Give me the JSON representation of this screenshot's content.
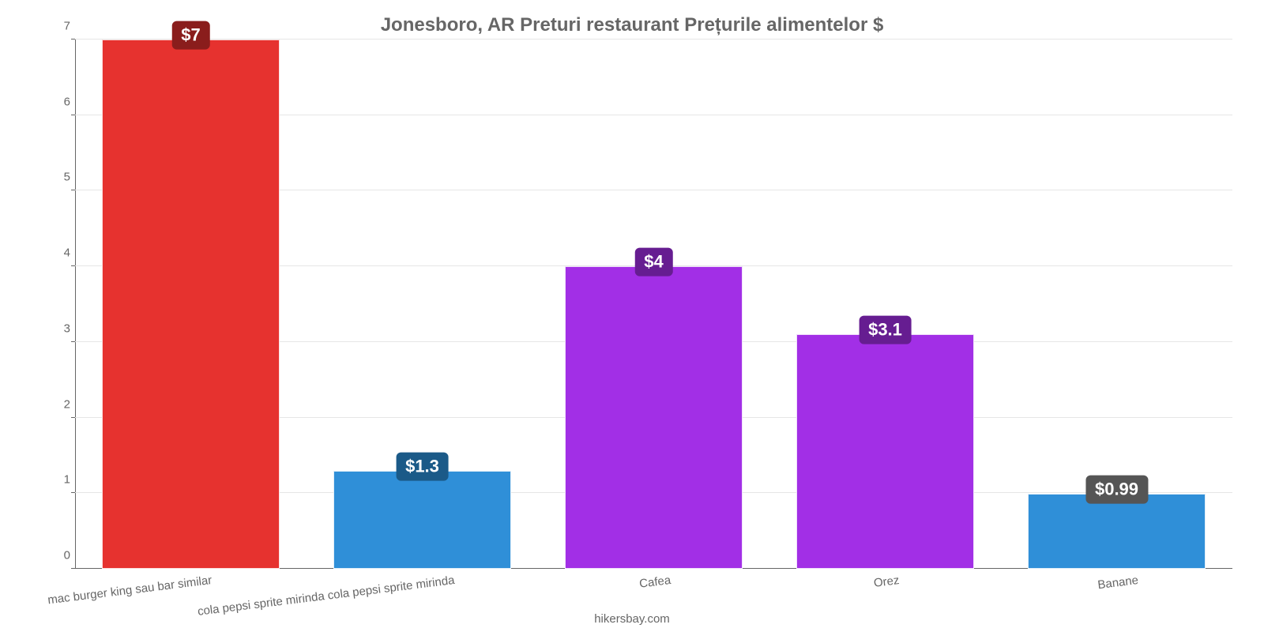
{
  "chart": {
    "type": "bar",
    "title": "Jonesboro, AR Preturi restaurant Prețurile alimentelor $",
    "title_color": "#666666",
    "title_fontsize": 24,
    "background_color": "#ffffff",
    "grid_color": "#e6e6e6",
    "axis_color": "#666666",
    "label_color": "#666666",
    "label_fontsize": 15,
    "value_badge_fontsize": 22,
    "ylim": [
      0,
      7
    ],
    "ytick_step": 1,
    "yticks": [
      "0",
      "1",
      "2",
      "3",
      "4",
      "5",
      "6",
      "7"
    ],
    "x_label_rotation_deg": -7,
    "bar_width_ratio": 0.77,
    "categories": [
      "mac burger king sau bar similar",
      "cola pepsi sprite mirinda cola pepsi sprite mirinda",
      "Cafea",
      "Orez",
      "Banane"
    ],
    "values": [
      7,
      1.3,
      4,
      3.1,
      0.99
    ],
    "value_labels": [
      "$7",
      "$1.3",
      "$4",
      "$3.1",
      "$0.99"
    ],
    "bar_colors": [
      "#e6322f",
      "#2f8fd8",
      "#a22fe6",
      "#a22fe6",
      "#2f8fd8"
    ],
    "badge_colors": [
      "#8a1d1c",
      "#1b5a88",
      "#661d91",
      "#661d91",
      "#555555"
    ],
    "attribution": "hikersbay.com"
  }
}
